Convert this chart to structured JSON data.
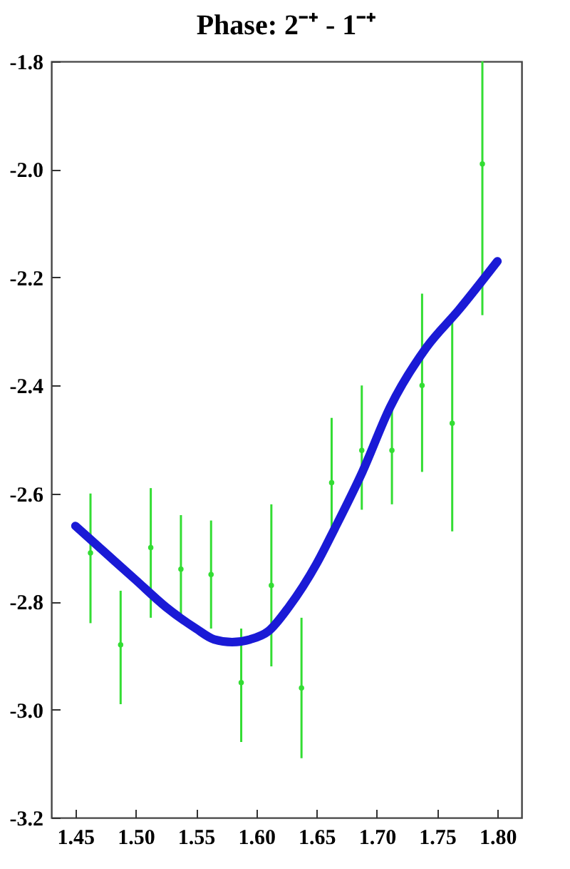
{
  "chart_data": {
    "type": "scatter",
    "title": "Phase: 2⁻⁺ - 1⁻⁺",
    "xlim": [
      1.43,
      1.82
    ],
    "ylim": [
      -3.2,
      -1.8
    ],
    "xticks": [
      1.45,
      {
        "value": 1.5,
        "label": "1.50"
      },
      1.55,
      {
        "value": 1.6,
        "label": "1.60"
      },
      1.65,
      {
        "value": 1.7,
        "label": "1.70"
      },
      1.75,
      {
        "value": 1.8,
        "label": "1.80"
      }
    ],
    "yticks": [
      -1.8,
      {
        "value": -2.0,
        "label": "-2.0"
      },
      -2.2,
      -2.4,
      -2.6,
      -2.8,
      {
        "value": -3.0,
        "label": "-3.0"
      },
      -3.2
    ],
    "grid": false,
    "series": [
      {
        "marker": "circle",
        "color": "#33dd33",
        "x": [
          1.4625,
          1.4875,
          1.5125,
          1.5375,
          1.5625,
          1.5875,
          1.6125,
          1.6375,
          1.6625,
          1.6875,
          1.7125,
          1.7375,
          1.7625,
          1.7875
        ],
        "values": [
          -2.71,
          -2.88,
          -2.7,
          -2.74,
          -2.75,
          -2.95,
          -2.77,
          -2.96,
          -2.58,
          -2.52,
          -2.52,
          -2.4,
          -2.47,
          -1.99
        ],
        "errors": [
          [
            -2.84,
            -2.6
          ],
          [
            -2.99,
            -2.78
          ],
          [
            -2.83,
            -2.59
          ],
          [
            -2.83,
            -2.64
          ],
          [
            -2.85,
            -2.65
          ],
          [
            -3.06,
            -2.85
          ],
          [
            -2.92,
            -2.62
          ],
          [
            -3.09,
            -2.83
          ],
          [
            -2.68,
            -2.46
          ],
          [
            -2.63,
            -2.4
          ],
          [
            -2.62,
            -2.44
          ],
          [
            -2.56,
            -2.23
          ],
          [
            -2.67,
            -2.28
          ],
          [
            -2.27,
            -1.8
          ]
        ]
      },
      {
        "type": "line",
        "color": "#1a1ad6",
        "line_style": "solid",
        "x": [
          1.45,
          1.475,
          1.5,
          1.525,
          1.55,
          1.565,
          1.58,
          1.595,
          1.61,
          1.627,
          1.65,
          1.665,
          1.688,
          1.711,
          1.741,
          1.768,
          1.8
        ],
        "values": [
          -2.66,
          -2.71,
          -2.76,
          -2.81,
          -2.85,
          -2.87,
          -2.875,
          -2.87,
          -2.855,
          -2.81,
          -2.73,
          -2.665,
          -2.56,
          -2.44,
          -2.33,
          -2.26,
          -2.17
        ]
      }
    ]
  }
}
